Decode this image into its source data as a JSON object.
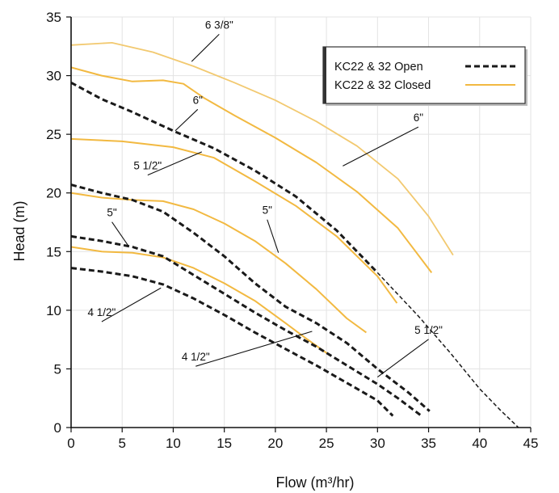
{
  "chart_data": {
    "type": "line",
    "xlabel": "Flow (m³/hr)",
    "ylabel": "Head (m)",
    "xlim": [
      0,
      45
    ],
    "ylim": [
      0,
      35
    ],
    "x_ticks": [
      0,
      5,
      10,
      15,
      20,
      25,
      30,
      35,
      40,
      45
    ],
    "y_ticks": [
      0,
      5,
      10,
      15,
      20,
      25,
      30,
      35
    ],
    "grid": true,
    "legend_position": "top-right",
    "legend": [
      {
        "label": "KC22 & 32 Open",
        "style": "dashed",
        "color": "#1a1a1a"
      },
      {
        "label": "KC22 & 32 Closed",
        "style": "solid",
        "color": "#f2b941"
      }
    ],
    "series": [
      {
        "group": "closed",
        "impeller": "6 3/8\"",
        "color": "#f2c970",
        "width": 1.8,
        "points": [
          [
            0,
            32.6
          ],
          [
            4,
            32.8
          ],
          [
            8,
            32.0
          ],
          [
            12,
            30.8
          ],
          [
            16,
            29.4
          ],
          [
            20,
            27.9
          ],
          [
            24,
            26.1
          ],
          [
            28,
            24.0
          ],
          [
            32,
            21.2
          ],
          [
            35,
            18.0
          ],
          [
            37.4,
            14.7
          ]
        ]
      },
      {
        "group": "closed",
        "impeller": "6\"",
        "color": "#f2b941",
        "width": 2,
        "points": [
          [
            0,
            30.7
          ],
          [
            3,
            30.0
          ],
          [
            6,
            29.5
          ],
          [
            9,
            29.6
          ],
          [
            11,
            29.3
          ],
          [
            13,
            28.1
          ],
          [
            16,
            26.6
          ],
          [
            20,
            24.7
          ],
          [
            24,
            22.6
          ],
          [
            28,
            20.1
          ],
          [
            32,
            17.0
          ],
          [
            35.3,
            13.2
          ]
        ]
      },
      {
        "group": "closed",
        "impeller": "5 1/2\"",
        "color": "#f2b941",
        "width": 2,
        "points": [
          [
            0,
            24.6
          ],
          [
            5,
            24.4
          ],
          [
            10,
            23.9
          ],
          [
            14,
            23.0
          ],
          [
            18,
            21.0
          ],
          [
            22,
            18.9
          ],
          [
            26,
            16.3
          ],
          [
            30,
            12.9
          ],
          [
            31.9,
            10.6
          ]
        ]
      },
      {
        "group": "closed",
        "impeller": "5\"",
        "color": "#f2b941",
        "width": 2,
        "points": [
          [
            0,
            20.0
          ],
          [
            3,
            19.6
          ],
          [
            6,
            19.4
          ],
          [
            9,
            19.3
          ],
          [
            12,
            18.6
          ],
          [
            15,
            17.4
          ],
          [
            18,
            15.9
          ],
          [
            21,
            14.0
          ],
          [
            24,
            11.8
          ],
          [
            27,
            9.3
          ],
          [
            28.9,
            8.1
          ]
        ]
      },
      {
        "group": "closed",
        "impeller": "4 1/2\"",
        "color": "#f2b941",
        "width": 2,
        "points": [
          [
            0,
            15.4
          ],
          [
            3,
            15.0
          ],
          [
            6,
            14.9
          ],
          [
            9,
            14.5
          ],
          [
            12,
            13.6
          ],
          [
            15,
            12.3
          ],
          [
            18,
            10.8
          ],
          [
            21,
            8.9
          ],
          [
            23,
            7.6
          ],
          [
            25.1,
            6.3
          ]
        ]
      },
      {
        "group": "open",
        "impeller": "6\"",
        "color": "#1a1a1a",
        "width": 3,
        "dash": "7 4",
        "points": [
          [
            0,
            29.4
          ],
          [
            3,
            28.0
          ],
          [
            6,
            26.9
          ],
          [
            10,
            25.3
          ],
          [
            14,
            23.8
          ],
          [
            18,
            21.9
          ],
          [
            22,
            19.7
          ],
          [
            26,
            16.8
          ],
          [
            30,
            13.2
          ]
        ]
      },
      {
        "group": "open",
        "impeller": "6\" (extension)",
        "color": "#1a1a1a",
        "width": 1.5,
        "dash": "5 3",
        "points": [
          [
            30,
            13.2
          ],
          [
            34,
            9.5
          ],
          [
            37,
            6.5
          ],
          [
            40,
            3.3
          ],
          [
            42,
            1.5
          ],
          [
            43.8,
            0.0
          ]
        ]
      },
      {
        "group": "open",
        "impeller": "5 1/2\"",
        "color": "#1a1a1a",
        "width": 3,
        "dash": "7 4",
        "points": [
          [
            0,
            20.7
          ],
          [
            3,
            20.0
          ],
          [
            6,
            19.4
          ],
          [
            9,
            18.4
          ],
          [
            12,
            16.6
          ],
          [
            15,
            14.6
          ],
          [
            18,
            12.3
          ],
          [
            21,
            10.3
          ],
          [
            24,
            8.9
          ],
          [
            27,
            7.2
          ],
          [
            30,
            5.0
          ],
          [
            33,
            3.0
          ],
          [
            35.1,
            1.4
          ]
        ]
      },
      {
        "group": "open",
        "impeller": "5\"",
        "color": "#1a1a1a",
        "width": 3,
        "dash": "7 4",
        "points": [
          [
            0,
            16.3
          ],
          [
            3,
            15.9
          ],
          [
            6,
            15.4
          ],
          [
            9,
            14.6
          ],
          [
            12,
            13.0
          ],
          [
            15,
            11.4
          ],
          [
            18,
            9.8
          ],
          [
            21,
            8.3
          ],
          [
            24,
            6.9
          ],
          [
            27,
            5.3
          ],
          [
            30,
            3.7
          ],
          [
            32,
            2.5
          ],
          [
            34.3,
            1.0
          ]
        ]
      },
      {
        "group": "open",
        "impeller": "4 1/2\"",
        "color": "#1a1a1a",
        "width": 3,
        "dash": "7 4",
        "points": [
          [
            0,
            13.6
          ],
          [
            3,
            13.3
          ],
          [
            6,
            12.9
          ],
          [
            9,
            12.2
          ],
          [
            12,
            11.0
          ],
          [
            15,
            9.6
          ],
          [
            18,
            8.1
          ],
          [
            21,
            6.7
          ],
          [
            24,
            5.3
          ],
          [
            27,
            3.8
          ],
          [
            30,
            2.3
          ],
          [
            31.5,
            1.0
          ]
        ]
      }
    ],
    "annotations": [
      {
        "text": "6 3/8\"",
        "label_at": [
          14.5,
          33.8
        ],
        "points_to": [
          11.8,
          31.2
        ]
      },
      {
        "text": "6\"",
        "label_at": [
          12.4,
          27.4
        ],
        "points_to": [
          10.2,
          25.3
        ]
      },
      {
        "text": "6\"",
        "label_at": [
          34.0,
          25.9
        ],
        "points_to": [
          26.6,
          22.3
        ]
      },
      {
        "text": "5 1/2\"",
        "label_at": [
          7.5,
          21.8
        ],
        "points_to": [
          12.8,
          23.5
        ]
      },
      {
        "text": "5\"",
        "label_at": [
          19.2,
          18.0
        ],
        "points_to": [
          20.3,
          14.9
        ]
      },
      {
        "text": "5\"",
        "label_at": [
          4.0,
          17.8
        ],
        "points_to": [
          5.6,
          15.5
        ]
      },
      {
        "text": "4 1/2\"",
        "label_at": [
          3.0,
          9.3
        ],
        "points_to": [
          8.8,
          11.9
        ]
      },
      {
        "text": "4 1/2\"",
        "label_at": [
          12.2,
          5.5
        ],
        "points_to": [
          23.6,
          8.2
        ]
      },
      {
        "text": "5 1/2\"",
        "label_at": [
          35.0,
          7.8
        ],
        "points_to": [
          30.0,
          4.3
        ]
      }
    ]
  }
}
